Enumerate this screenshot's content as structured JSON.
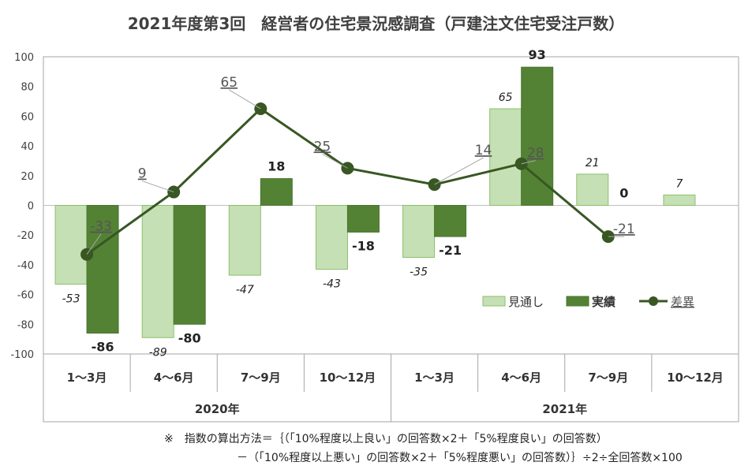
{
  "title": "2021年度第3回　経営者の住宅景況感調査（戸建注文住宅受注戸数）",
  "chart_data": {
    "type": "bar",
    "title": "2021年度第3回　経営者の住宅景況感調査（戸建注文住宅受注戸数）",
    "ylim": [
      -100,
      100
    ],
    "yticks": [
      100,
      80,
      60,
      40,
      20,
      0,
      -20,
      -40,
      -60,
      -80,
      -100
    ],
    "grid": false,
    "legend_position": "center-right",
    "categories": [
      "1～3月",
      "4～6月",
      "7～9月",
      "10～12月",
      "1～3月",
      "4～6月",
      "7～9月",
      "10～12月"
    ],
    "groups": [
      {
        "label": "2020年",
        "span": 4
      },
      {
        "label": "2021年",
        "span": 4
      }
    ],
    "series": [
      {
        "name": "見通し",
        "type": "bar",
        "color": "#c5e0b4",
        "values": [
          -53,
          -89,
          -47,
          -43,
          -35,
          65,
          21,
          7
        ],
        "labels": [
          "-53",
          "-89",
          "-47",
          "-43",
          "-35",
          "65",
          "21",
          "7"
        ]
      },
      {
        "name": "実績",
        "type": "bar",
        "color": "#548235",
        "values": [
          -86,
          -80,
          18,
          -18,
          -21,
          93,
          0,
          null
        ],
        "labels": [
          "-86",
          "-80",
          "18",
          "-18",
          "-21",
          "93",
          "0",
          ""
        ]
      },
      {
        "name": "差異",
        "type": "line",
        "color": "#385723",
        "values": [
          -33,
          9,
          65,
          25,
          14,
          28,
          -21,
          null
        ],
        "labels": [
          "-33",
          "9",
          "65",
          "25",
          "14",
          "28",
          "-21",
          ""
        ]
      }
    ]
  },
  "notes": [
    "※　指数の算出方法＝｛（「10%程度以上良い」の回答数×2＋「5%程度良い」の回答数）",
    "－（「10%程度以上悪い」の回答数×2＋「5%程度悪い」の回答数）｝÷2÷全回答数×100"
  ]
}
